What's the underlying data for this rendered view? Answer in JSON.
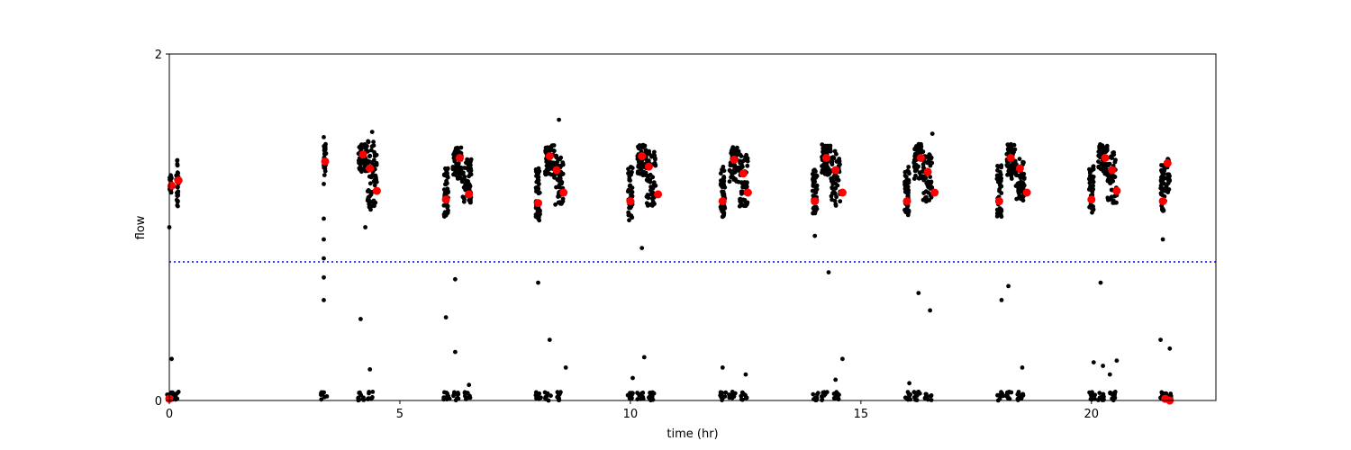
{
  "chart_data": {
    "type": "scatter",
    "title": "",
    "xlabel": "time (hr)",
    "ylabel": "flow",
    "xlim": [
      0,
      22.7
    ],
    "ylim": [
      0,
      2
    ],
    "x_ticks": [
      0,
      5,
      10,
      15,
      20
    ],
    "y_ticks": [
      0,
      2
    ],
    "grid": false,
    "threshold_line": {
      "y": 0.8,
      "style": "dotted",
      "color": "#0000ff"
    },
    "raw_points_color": "#000000",
    "mean_points_color": "#ff0000",
    "clusters": [
      {
        "start": 0.0,
        "end": 0.05,
        "low": 1.18,
        "high": 1.3,
        "n": 18
      },
      {
        "start": 0.15,
        "end": 0.2,
        "low": 1.12,
        "high": 1.4,
        "n": 28
      },
      {
        "start": 3.35,
        "end": 3.4,
        "low": 1.3,
        "high": 1.48,
        "n": 30
      },
      {
        "start": 4.1,
        "end": 4.3,
        "low": 1.32,
        "high": 1.48,
        "n": 60
      },
      {
        "start": 4.3,
        "end": 4.5,
        "low": 1.1,
        "high": 1.5,
        "n": 60
      },
      {
        "start": 5.95,
        "end": 6.05,
        "low": 1.06,
        "high": 1.35,
        "n": 45
      },
      {
        "start": 6.15,
        "end": 6.35,
        "low": 1.28,
        "high": 1.46,
        "n": 55
      },
      {
        "start": 6.35,
        "end": 6.55,
        "low": 1.14,
        "high": 1.4,
        "n": 55
      },
      {
        "start": 7.95,
        "end": 8.05,
        "low": 1.04,
        "high": 1.36,
        "n": 45
      },
      {
        "start": 8.15,
        "end": 8.35,
        "low": 1.3,
        "high": 1.48,
        "n": 55
      },
      {
        "start": 8.35,
        "end": 8.55,
        "low": 1.12,
        "high": 1.42,
        "n": 55
      },
      {
        "start": 9.95,
        "end": 10.05,
        "low": 1.04,
        "high": 1.36,
        "n": 45
      },
      {
        "start": 10.15,
        "end": 10.35,
        "low": 1.3,
        "high": 1.48,
        "n": 55
      },
      {
        "start": 10.35,
        "end": 10.55,
        "low": 1.12,
        "high": 1.44,
        "n": 55
      },
      {
        "start": 11.95,
        "end": 12.05,
        "low": 1.06,
        "high": 1.36,
        "n": 45
      },
      {
        "start": 12.15,
        "end": 12.35,
        "low": 1.26,
        "high": 1.48,
        "n": 55
      },
      {
        "start": 12.35,
        "end": 12.55,
        "low": 1.12,
        "high": 1.42,
        "n": 55
      },
      {
        "start": 13.95,
        "end": 14.05,
        "low": 1.08,
        "high": 1.34,
        "n": 45
      },
      {
        "start": 14.15,
        "end": 14.35,
        "low": 1.3,
        "high": 1.48,
        "n": 55
      },
      {
        "start": 14.35,
        "end": 14.55,
        "low": 1.12,
        "high": 1.44,
        "n": 55
      },
      {
        "start": 15.95,
        "end": 16.05,
        "low": 1.06,
        "high": 1.36,
        "n": 45
      },
      {
        "start": 16.15,
        "end": 16.35,
        "low": 1.28,
        "high": 1.48,
        "n": 55
      },
      {
        "start": 16.35,
        "end": 16.55,
        "low": 1.14,
        "high": 1.42,
        "n": 55
      },
      {
        "start": 17.95,
        "end": 18.05,
        "low": 1.06,
        "high": 1.36,
        "n": 45
      },
      {
        "start": 18.15,
        "end": 18.35,
        "low": 1.28,
        "high": 1.48,
        "n": 55
      },
      {
        "start": 18.35,
        "end": 18.55,
        "low": 1.14,
        "high": 1.4,
        "n": 55
      },
      {
        "start": 19.95,
        "end": 20.05,
        "low": 1.08,
        "high": 1.36,
        "n": 45
      },
      {
        "start": 20.15,
        "end": 20.35,
        "low": 1.3,
        "high": 1.48,
        "n": 55
      },
      {
        "start": 20.35,
        "end": 20.55,
        "low": 1.14,
        "high": 1.44,
        "n": 55
      },
      {
        "start": 21.5,
        "end": 21.6,
        "low": 1.08,
        "high": 1.36,
        "n": 35
      },
      {
        "start": 21.6,
        "end": 21.7,
        "low": 1.2,
        "high": 1.4,
        "n": 25
      }
    ],
    "low_cluster_times": [
      0.0,
      0.1,
      3.35,
      4.15,
      4.35,
      6.0,
      6.2,
      6.45,
      8.0,
      8.2,
      8.45,
      10.0,
      10.2,
      10.45,
      12.0,
      12.2,
      12.45,
      14.0,
      14.2,
      14.45,
      16.0,
      16.2,
      16.45,
      18.0,
      18.2,
      18.45,
      20.0,
      20.2,
      20.45,
      21.55,
      21.65
    ],
    "outliers": [
      [
        0.0,
        1.0
      ],
      [
        0.05,
        0.24
      ],
      [
        0.2,
        0.05
      ],
      [
        3.35,
        1.52
      ],
      [
        3.35,
        1.25
      ],
      [
        3.35,
        1.05
      ],
      [
        3.35,
        0.93
      ],
      [
        3.35,
        0.82
      ],
      [
        3.35,
        0.71
      ],
      [
        3.35,
        0.58
      ],
      [
        4.15,
        0.47
      ],
      [
        4.25,
        1.0
      ],
      [
        4.35,
        0.18
      ],
      [
        4.4,
        1.55
      ],
      [
        6.0,
        0.48
      ],
      [
        6.2,
        0.7
      ],
      [
        6.2,
        0.28
      ],
      [
        6.5,
        0.09
      ],
      [
        8.0,
        0.68
      ],
      [
        8.25,
        0.35
      ],
      [
        8.45,
        1.62
      ],
      [
        8.6,
        0.19
      ],
      [
        10.05,
        0.13
      ],
      [
        10.25,
        0.88
      ],
      [
        10.3,
        0.25
      ],
      [
        12.0,
        0.19
      ],
      [
        12.5,
        0.15
      ],
      [
        14.0,
        0.95
      ],
      [
        14.3,
        0.74
      ],
      [
        14.45,
        0.12
      ],
      [
        14.6,
        0.24
      ],
      [
        16.05,
        0.1
      ],
      [
        16.25,
        0.62
      ],
      [
        16.5,
        0.52
      ],
      [
        16.55,
        1.54
      ],
      [
        18.05,
        0.58
      ],
      [
        18.2,
        0.66
      ],
      [
        18.5,
        0.19
      ],
      [
        20.05,
        0.22
      ],
      [
        20.2,
        0.68
      ],
      [
        20.25,
        0.2
      ],
      [
        20.4,
        0.15
      ],
      [
        20.55,
        0.23
      ],
      [
        21.5,
        0.35
      ],
      [
        21.55,
        0.93
      ],
      [
        21.7,
        0.3
      ]
    ],
    "means": [
      {
        "x": 0.05,
        "y": 1.24
      },
      {
        "x": 0.2,
        "y": 1.27
      },
      {
        "x": 3.38,
        "y": 1.38
      },
      {
        "x": 4.2,
        "y": 1.42
      },
      {
        "x": 4.35,
        "y": 1.34
      },
      {
        "x": 4.5,
        "y": 1.21
      },
      {
        "x": 6.0,
        "y": 1.16
      },
      {
        "x": 6.3,
        "y": 1.4
      },
      {
        "x": 6.5,
        "y": 1.19
      },
      {
        "x": 8.0,
        "y": 1.14
      },
      {
        "x": 8.25,
        "y": 1.41
      },
      {
        "x": 8.4,
        "y": 1.33
      },
      {
        "x": 8.55,
        "y": 1.2
      },
      {
        "x": 10.0,
        "y": 1.15
      },
      {
        "x": 10.25,
        "y": 1.41
      },
      {
        "x": 10.4,
        "y": 1.35
      },
      {
        "x": 10.6,
        "y": 1.19
      },
      {
        "x": 12.0,
        "y": 1.15
      },
      {
        "x": 12.25,
        "y": 1.39
      },
      {
        "x": 12.45,
        "y": 1.31
      },
      {
        "x": 12.55,
        "y": 1.2
      },
      {
        "x": 14.0,
        "y": 1.15
      },
      {
        "x": 14.25,
        "y": 1.4
      },
      {
        "x": 14.45,
        "y": 1.33
      },
      {
        "x": 14.6,
        "y": 1.2
      },
      {
        "x": 16.0,
        "y": 1.15
      },
      {
        "x": 16.3,
        "y": 1.4
      },
      {
        "x": 16.45,
        "y": 1.32
      },
      {
        "x": 16.6,
        "y": 1.2
      },
      {
        "x": 18.0,
        "y": 1.15
      },
      {
        "x": 18.25,
        "y": 1.4
      },
      {
        "x": 18.45,
        "y": 1.34
      },
      {
        "x": 18.6,
        "y": 1.2
      },
      {
        "x": 20.0,
        "y": 1.16
      },
      {
        "x": 20.3,
        "y": 1.4
      },
      {
        "x": 20.45,
        "y": 1.33
      },
      {
        "x": 20.55,
        "y": 1.21
      },
      {
        "x": 21.55,
        "y": 1.15
      },
      {
        "x": 21.65,
        "y": 1.37
      },
      {
        "x": 0.0,
        "y": 0.01
      },
      {
        "x": 21.6,
        "y": 0.01
      },
      {
        "x": 21.7,
        "y": 0.0
      }
    ]
  }
}
